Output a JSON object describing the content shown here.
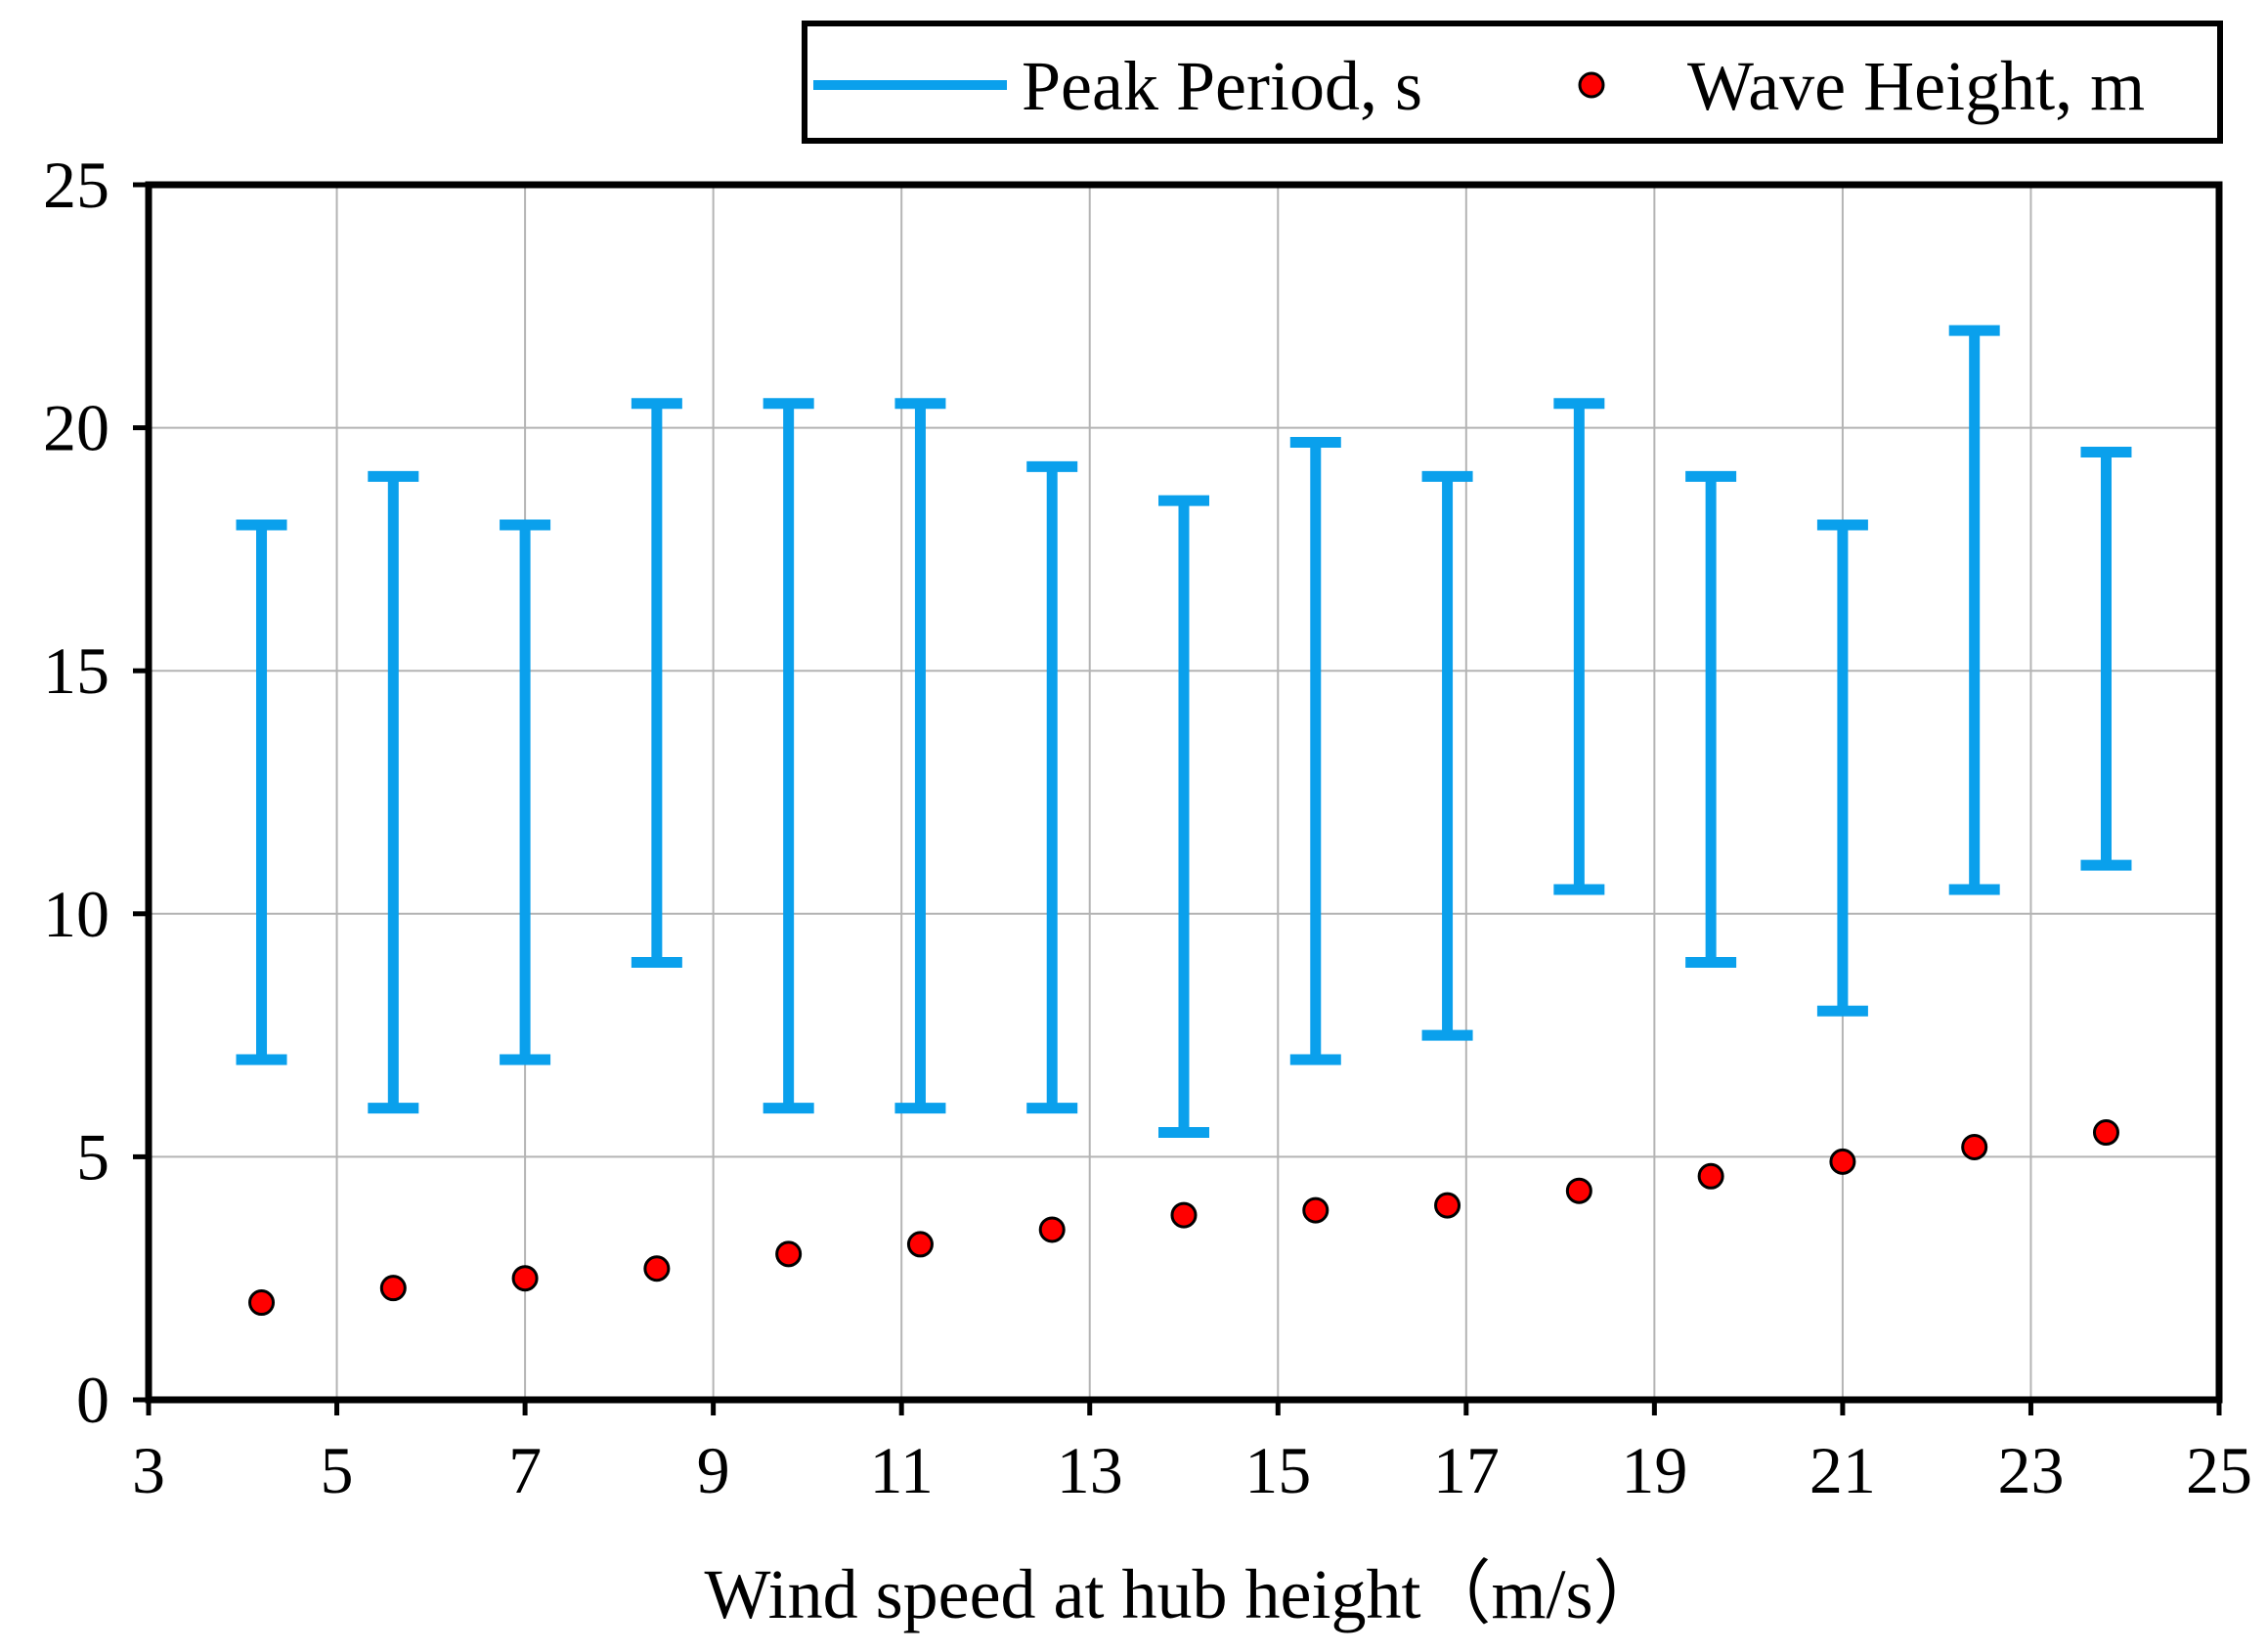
{
  "chart_data": {
    "type": "scatter",
    "title": "",
    "xlabel": "Wind speed at hub height（m/s）",
    "ylabel": "",
    "xlim": [
      3,
      25
    ],
    "ylim": [
      0,
      25
    ],
    "xticks": [
      3,
      5,
      7,
      9,
      11,
      13,
      15,
      17,
      19,
      21,
      23,
      25
    ],
    "yticks": [
      0,
      5,
      10,
      15,
      20,
      25
    ],
    "grid": true,
    "legend_position": "top-right",
    "series": [
      {
        "name": "Peak Period, s",
        "kind": "range",
        "color": "#0aa0ec",
        "x": [
          4.2,
          5.6,
          7.0,
          8.4,
          9.8,
          11.2,
          12.6,
          14.0,
          15.4,
          16.8,
          18.2,
          19.6,
          21.0,
          22.4,
          23.8
        ],
        "low": [
          7,
          6,
          7,
          9,
          6,
          6,
          6,
          5.5,
          7,
          7.5,
          10.5,
          9,
          8,
          10.5,
          11
        ],
        "high": [
          18,
          19,
          18,
          20.5,
          20.5,
          20.5,
          19.2,
          18.5,
          19.7,
          19,
          20.5,
          19,
          18,
          22,
          19.5
        ]
      },
      {
        "name": "Wave Height, m",
        "kind": "points",
        "color": "#ff0000",
        "x": [
          4.2,
          5.6,
          7.0,
          8.4,
          9.8,
          11.2,
          12.6,
          14.0,
          15.4,
          16.8,
          18.2,
          19.6,
          21.0,
          22.4,
          23.8
        ],
        "values": [
          2.0,
          2.3,
          2.5,
          2.7,
          3.0,
          3.2,
          3.5,
          3.8,
          3.9,
          4.0,
          4.3,
          4.6,
          4.9,
          5.2,
          5.5
        ]
      }
    ]
  }
}
